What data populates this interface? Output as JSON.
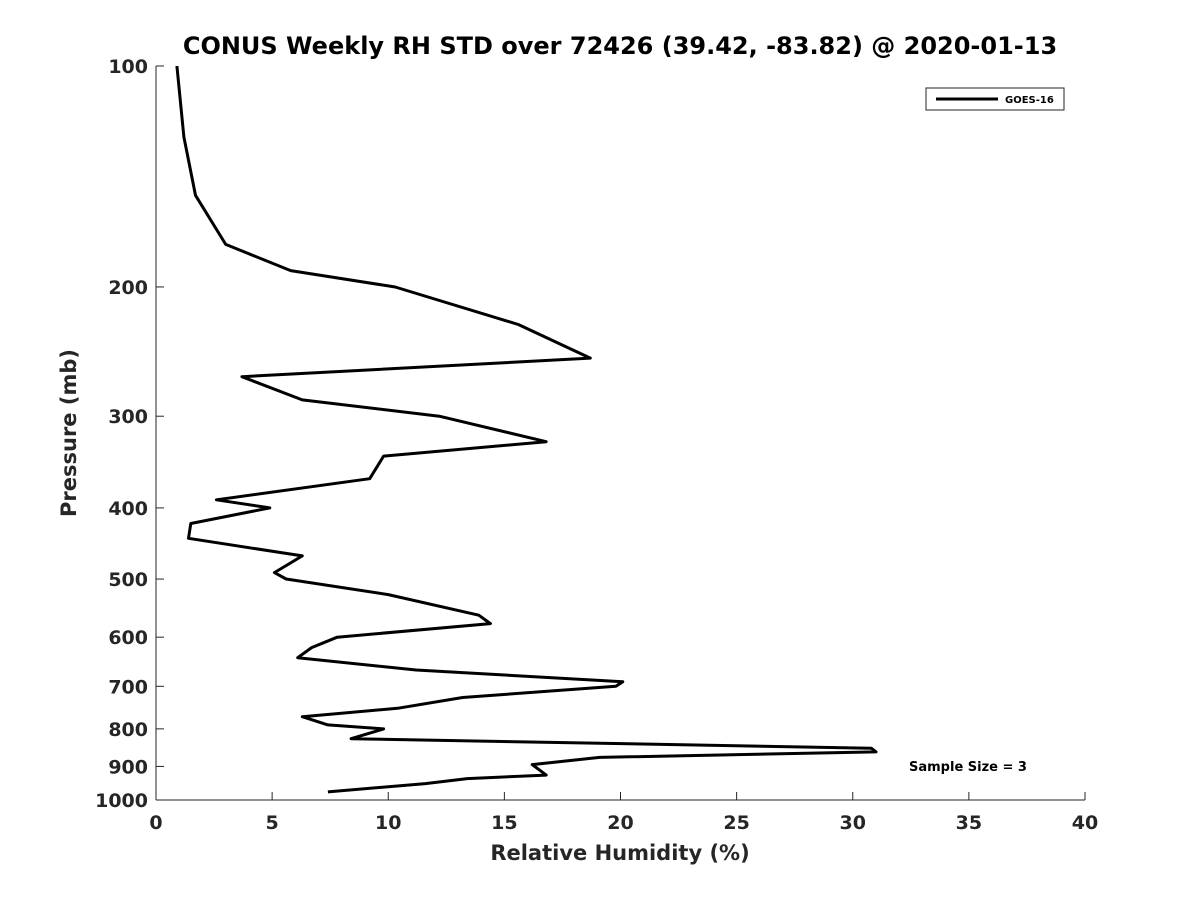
{
  "chart_data": {
    "type": "line",
    "title": "CONUS Weekly RH STD over 72426 (39.42, -83.82) @ 2020-01-13",
    "xlabel": "Relative Humidity (%)",
    "ylabel": "Pressure (mb)",
    "xlim": [
      0,
      40
    ],
    "ylim": [
      100,
      1000
    ],
    "y_scale": "log",
    "y_reversed": true,
    "xticks": [
      0,
      5,
      10,
      15,
      20,
      25,
      30,
      35,
      40
    ],
    "yticks": [
      100,
      200,
      300,
      400,
      500,
      600,
      700,
      800,
      900,
      1000
    ],
    "grid": false,
    "legend": "top-right",
    "series": [
      {
        "name": "GOES-16",
        "color": "#000000",
        "x": [
          0.9,
          1.2,
          1.7,
          3.0,
          5.8,
          10.3,
          15.6,
          18.7,
          3.7,
          6.3,
          12.2,
          16.8,
          9.8,
          9.2,
          2.6,
          4.9,
          1.5,
          1.4,
          6.3,
          5.1,
          5.6,
          10.0,
          13.9,
          14.4,
          7.8,
          6.7,
          6.1,
          11.2,
          20.1,
          19.8,
          13.2,
          10.4,
          6.3,
          7.4,
          9.8,
          8.4,
          30.8,
          31.0,
          19.1,
          16.2,
          16.8,
          13.4,
          11.6,
          7.4
        ],
        "y": [
          100,
          125,
          150,
          175,
          190,
          200,
          225,
          250,
          265,
          285,
          300,
          325,
          340,
          365,
          390,
          400,
          420,
          440,
          465,
          490,
          500,
          525,
          560,
          575,
          600,
          620,
          640,
          665,
          690,
          700,
          725,
          750,
          770,
          790,
          800,
          825,
          850,
          860,
          875,
          895,
          925,
          935,
          950,
          975
        ]
      }
    ],
    "annotations": [
      "Sample Size = 3"
    ]
  }
}
